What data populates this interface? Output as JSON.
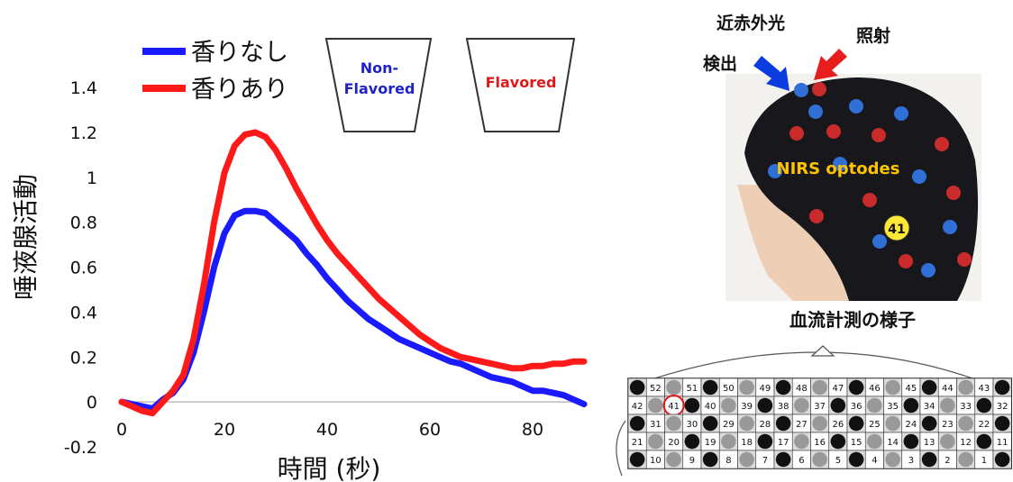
{
  "chart_data": {
    "type": "line",
    "xlabel": "時間 (秒)",
    "ylabel": "唾液腺活動",
    "xlim": [
      0,
      90
    ],
    "ylim": [
      -0.2,
      1.4
    ],
    "x_ticks": [
      "0",
      "20",
      "40",
      "60",
      "80"
    ],
    "x_tick_values": [
      0,
      20,
      40,
      60,
      80
    ],
    "y_ticks": [
      "-0.2",
      "0",
      "0.2",
      "0.4",
      "0.6",
      "0.8",
      "1",
      "1.2",
      "1.4"
    ],
    "y_tick_values": [
      -0.2,
      0,
      0.2,
      0.4,
      0.6,
      0.8,
      1,
      1.2,
      1.4
    ],
    "grid": false,
    "legend_position": "top-left",
    "series": [
      {
        "name": "香りなし",
        "color": "#1a1aff",
        "x": [
          0,
          2,
          4,
          6,
          8,
          10,
          12,
          14,
          16,
          18,
          20,
          22,
          24,
          26,
          28,
          30,
          32,
          34,
          36,
          38,
          40,
          42,
          44,
          46,
          48,
          50,
          52,
          54,
          56,
          58,
          60,
          62,
          64,
          66,
          68,
          70,
          72,
          74,
          76,
          78,
          80,
          82,
          84,
          86,
          88,
          90
        ],
        "y": [
          0,
          -0.01,
          -0.02,
          -0.03,
          0.01,
          0.04,
          0.1,
          0.22,
          0.4,
          0.6,
          0.75,
          0.83,
          0.85,
          0.85,
          0.84,
          0.8,
          0.76,
          0.72,
          0.66,
          0.61,
          0.55,
          0.5,
          0.45,
          0.41,
          0.37,
          0.34,
          0.31,
          0.28,
          0.26,
          0.24,
          0.22,
          0.2,
          0.18,
          0.17,
          0.15,
          0.13,
          0.11,
          0.1,
          0.09,
          0.07,
          0.05,
          0.05,
          0.04,
          0.03,
          0.01,
          -0.01
        ]
      },
      {
        "name": "香りあり",
        "color": "#ff1a1a",
        "x": [
          0,
          2,
          4,
          6,
          8,
          10,
          12,
          14,
          16,
          18,
          20,
          22,
          24,
          26,
          28,
          30,
          32,
          34,
          36,
          38,
          40,
          42,
          44,
          46,
          48,
          50,
          52,
          54,
          56,
          58,
          60,
          62,
          64,
          66,
          68,
          70,
          72,
          74,
          76,
          78,
          80,
          82,
          84,
          86,
          88,
          90
        ],
        "y": [
          0,
          -0.02,
          -0.04,
          -0.05,
          0,
          0.05,
          0.12,
          0.28,
          0.52,
          0.8,
          1.02,
          1.14,
          1.19,
          1.2,
          1.18,
          1.12,
          1.04,
          0.95,
          0.87,
          0.79,
          0.72,
          0.66,
          0.61,
          0.56,
          0.51,
          0.46,
          0.42,
          0.38,
          0.34,
          0.3,
          0.27,
          0.24,
          0.22,
          0.2,
          0.19,
          0.18,
          0.17,
          0.16,
          0.15,
          0.15,
          0.16,
          0.16,
          0.17,
          0.17,
          0.18,
          0.18
        ]
      }
    ]
  },
  "cups": [
    {
      "label_line1": "Non-",
      "label_line2": "Flavored",
      "color": "#1f22c8"
    },
    {
      "label_line1": "Flavored",
      "label_line2": "",
      "color": "#e01818"
    }
  ],
  "photo": {
    "label_emit": "近赤外光",
    "label_irradiate": "照射",
    "label_detect": "検出",
    "optodes_label": "NIRS optodes",
    "channel_marker": "41",
    "caption": "血流計測の様子",
    "detect_color": "#0a3ce0",
    "irradiate_color": "#e81e1e",
    "optodes_color": "#ffc400"
  },
  "channel_grid": {
    "rows": [
      [
        "52",
        "51",
        "50",
        "49",
        "48",
        "47",
        "46",
        "45",
        "44",
        "43"
      ],
      [
        "42",
        "41",
        "40",
        "39",
        "38",
        "37",
        "36",
        "35",
        "34",
        "33",
        "32"
      ],
      [
        "31",
        "30",
        "29",
        "28",
        "27",
        "26",
        "25",
        "24",
        "23",
        "22"
      ],
      [
        "21",
        "20",
        "19",
        "18",
        "17",
        "16",
        "15",
        "14",
        "13",
        "12",
        "11"
      ],
      [
        "10",
        "9",
        "8",
        "7",
        "6",
        "5",
        "4",
        "3",
        "2",
        "1"
      ]
    ],
    "highlight": "41"
  }
}
